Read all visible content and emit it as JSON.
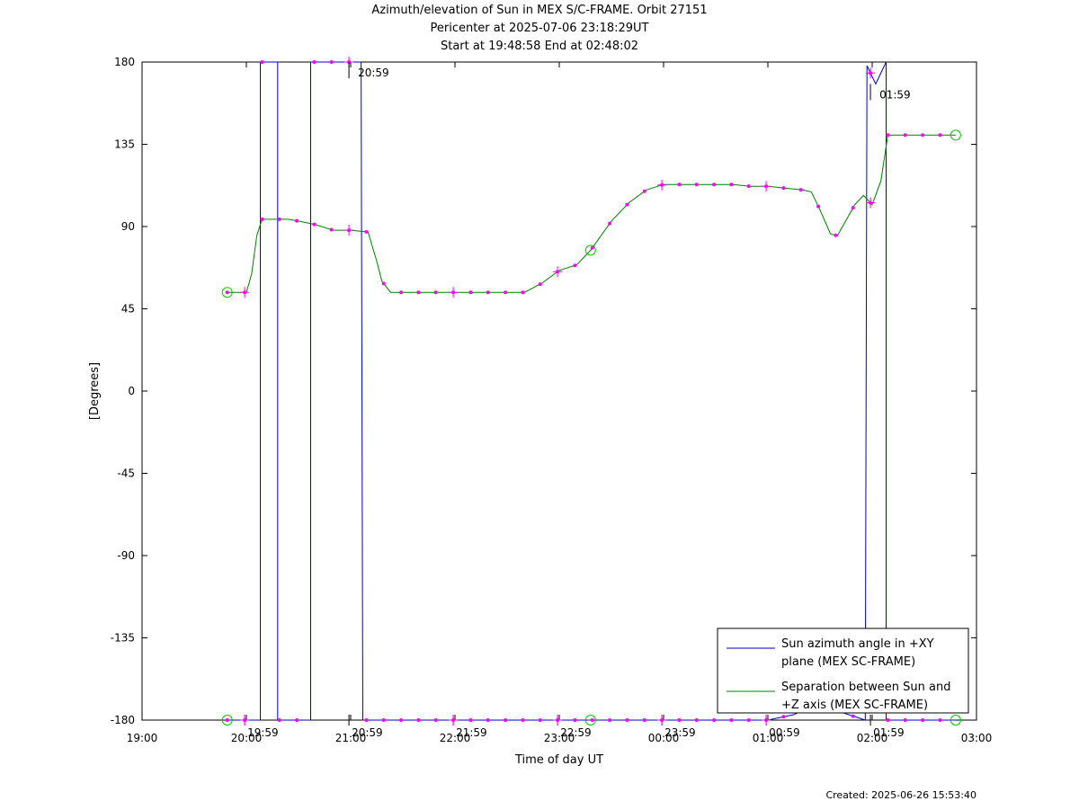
{
  "chart_data": {
    "type": "line",
    "title": "Azimuth/elevation of Sun in MEX S/C-FRAME.  Orbit 27151",
    "subtitle_1": "Pericenter at 2025-07-06 23:18:29UT",
    "subtitle_2": "Start at 19:48:58 End at 02:48:02",
    "xlabel": "Time of day UT",
    "ylabel": "[Degrees]",
    "ylim": [
      -180,
      180
    ],
    "xlim_minutes_from_19_00": [
      0,
      480
    ],
    "y_ticks": [
      "180",
      "135",
      "90",
      "45",
      "0",
      "-45",
      "-90",
      "-135",
      "-180"
    ],
    "x_ticks": [
      "19:00",
      "20:00",
      "21:00",
      "22:00",
      "23:00",
      "00:00",
      "01:00",
      "02:00",
      "03:00"
    ],
    "time_marks": [
      "19:59",
      "20:59",
      "21:59",
      "22:59",
      "23:59",
      "00:59",
      "01:59"
    ],
    "legend_position": "bottom-right",
    "series": [
      {
        "name": "Sun azimuth angle in +XY plane (MEX SC-FRAME)",
        "legend_lines": [
          "Sun azimuth angle in +XY",
          "plane (MEX SC-FRAME)"
        ],
        "color": "#0000c8",
        "points": [
          [
            "19:49",
            -180
          ],
          [
            "20:08",
            -180
          ],
          [
            "20:08",
            180
          ],
          [
            "20:18",
            180
          ],
          [
            "20:18",
            -180
          ],
          [
            "20:37",
            -180
          ],
          [
            "20:37",
            180
          ],
          [
            "21:06",
            180
          ],
          [
            "21:07",
            -180
          ],
          [
            "22:00",
            -180
          ],
          [
            "23:00",
            -180
          ],
          [
            "00:00",
            -180
          ],
          [
            "01:00",
            -180
          ],
          [
            "01:15",
            -177
          ],
          [
            "01:30",
            -170
          ],
          [
            "01:40",
            -175
          ],
          [
            "01:56",
            -180
          ],
          [
            "01:57",
            178
          ],
          [
            "02:00",
            172
          ],
          [
            "02:02",
            168
          ],
          [
            "02:08",
            180
          ],
          [
            "02:08",
            -180
          ],
          [
            "02:48",
            -180
          ]
        ]
      },
      {
        "name": "Separation between Sun and +Z axis (MEX SC-FRAME)",
        "legend_lines": [
          "Separation between Sun and",
          "+Z axis (MEX SC-FRAME)"
        ],
        "color": "#008000",
        "points": [
          [
            "19:49",
            54
          ],
          [
            "20:00",
            54
          ],
          [
            "20:03",
            64
          ],
          [
            "20:06",
            85
          ],
          [
            "20:09",
            94
          ],
          [
            "20:15",
            94
          ],
          [
            "20:24",
            94
          ],
          [
            "20:30",
            93
          ],
          [
            "20:40",
            91
          ],
          [
            "20:50",
            88
          ],
          [
            "21:00",
            88
          ],
          [
            "21:10",
            87
          ],
          [
            "21:15",
            71
          ],
          [
            "21:18",
            60
          ],
          [
            "21:23",
            54
          ],
          [
            "21:30",
            54
          ],
          [
            "21:50",
            54
          ],
          [
            "22:10",
            54
          ],
          [
            "22:30",
            54
          ],
          [
            "22:40",
            54
          ],
          [
            "22:50",
            59
          ],
          [
            "23:00",
            66
          ],
          [
            "23:10",
            69
          ],
          [
            "23:18",
            77
          ],
          [
            "23:30",
            93
          ],
          [
            "23:40",
            103
          ],
          [
            "23:50",
            110
          ],
          [
            "24:00",
            113
          ],
          [
            "24:10",
            113
          ],
          [
            "24:20",
            113
          ],
          [
            "24:40",
            113
          ],
          [
            "24:50",
            112
          ],
          [
            "25:00",
            112
          ],
          [
            "25:10",
            111
          ],
          [
            "25:20",
            110
          ],
          [
            "25:25",
            109
          ],
          [
            "25:30",
            99
          ],
          [
            "25:36",
            86
          ],
          [
            "25:40",
            85
          ],
          [
            "25:50",
            102
          ],
          [
            "25:55",
            107
          ],
          [
            "26:00",
            102
          ],
          [
            "26:05",
            115
          ],
          [
            "26:09",
            140
          ],
          [
            "26:20",
            140
          ],
          [
            "26:48",
            140
          ]
        ]
      }
    ]
  },
  "footer": {
    "created": "Created: 2025-06-26 15:53:40"
  }
}
